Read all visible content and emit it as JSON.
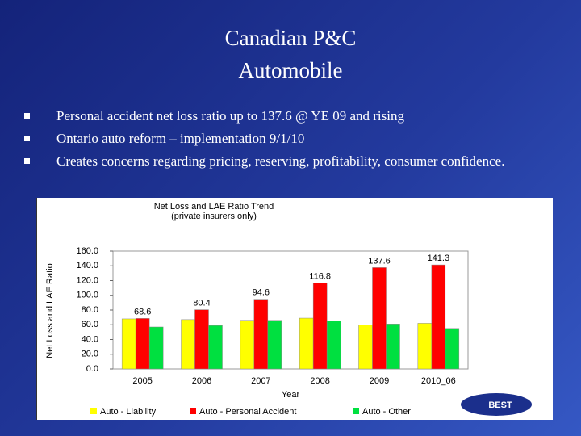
{
  "slide": {
    "title": [
      "Canadian P&C",
      "Automobile"
    ],
    "bullets": [
      "Personal accident net loss ratio up to 137.6 @ YE 09 and rising",
      "Ontario auto reform – implementation 9/1/10",
      "Creates concerns regarding pricing, reserving, profitability, consumer confidence."
    ],
    "logo": "BEST"
  },
  "chart_data": {
    "type": "bar",
    "title": "Net Loss and LAE Ratio Trend",
    "subtitle": "(private insurers only)",
    "x_label": "Year",
    "y_label": "Net Loss and LAE Ratio",
    "categories": [
      "2005",
      "2006",
      "2007",
      "2008",
      "2009",
      "2010_06"
    ],
    "series": [
      {
        "name": "Auto - Liability",
        "color": "#ffff00",
        "values": [
          68,
          67,
          66,
          69,
          60,
          62
        ]
      },
      {
        "name": "Auto - Personal Accident",
        "color": "#ff0000",
        "values": [
          68.6,
          80.4,
          94.6,
          116.8,
          137.6,
          141.3
        ],
        "data_labels": true
      },
      {
        "name": "Auto - Other",
        "color": "#00e040",
        "values": [
          57,
          59,
          66,
          65,
          61,
          55
        ]
      }
    ],
    "ylim": [
      0,
      160
    ],
    "yticks": [
      {
        "value": 0,
        "label": "0.0"
      },
      {
        "value": 20,
        "label": "20.0"
      },
      {
        "value": 40,
        "label": "40.0"
      },
      {
        "value": 60,
        "label": "60.0"
      },
      {
        "value": 80,
        "label": "80.0"
      },
      {
        "value": 100,
        "label": "100.0"
      },
      {
        "value": 120,
        "label": "120.0"
      },
      {
        "value": 140,
        "label": "140.0"
      },
      {
        "value": 160,
        "label": "160.0"
      }
    ],
    "legend": "bottom"
  }
}
